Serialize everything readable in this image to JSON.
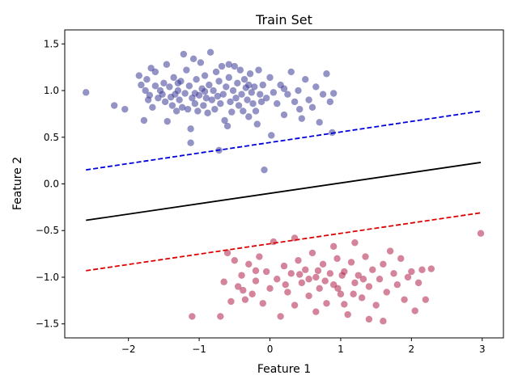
{
  "chart_data": {
    "type": "scatter",
    "title": "Train Set",
    "xlabel": "Feature 1",
    "ylabel": "Feature 2",
    "xlim": [
      -2.9,
      3.3
    ],
    "ylim": [
      -1.65,
      1.65
    ],
    "xticks": [
      -2,
      -1,
      0,
      1,
      2,
      3
    ],
    "yticks": [
      -1.5,
      -1.0,
      -0.5,
      0.0,
      0.5,
      1.0,
      1.5
    ],
    "xtick_labels": [
      "−2",
      "−1",
      "0",
      "1",
      "2",
      "3"
    ],
    "ytick_labels": [
      "−1.5",
      "−1.0",
      "−0.5",
      "0.0",
      "0.5",
      "1.0",
      "1.5"
    ],
    "grid": false,
    "legend": "none",
    "series": [
      {
        "color": "#3b3b98",
        "points": [
          [
            -2.6,
            0.98
          ],
          [
            -2.2,
            0.84
          ],
          [
            -2.05,
            0.8
          ],
          [
            -1.85,
            1.16
          ],
          [
            -1.82,
            1.06
          ],
          [
            -1.78,
            0.68
          ],
          [
            -1.76,
            1.0
          ],
          [
            -1.74,
            1.12
          ],
          [
            -1.72,
            0.9
          ],
          [
            -1.7,
            0.95
          ],
          [
            -1.68,
            1.24
          ],
          [
            -1.66,
            0.82
          ],
          [
            -1.62,
            1.05
          ],
          [
            -1.58,
            0.92
          ],
          [
            -1.55,
            1.0
          ],
          [
            -1.52,
            0.96
          ],
          [
            -1.5,
            1.08
          ],
          [
            -1.48,
            0.88
          ],
          [
            -1.46,
            1.28
          ],
          [
            -1.45,
            0.67
          ],
          [
            -1.42,
            1.04
          ],
          [
            -1.4,
            0.93
          ],
          [
            -1.38,
            0.84
          ],
          [
            -1.36,
            1.14
          ],
          [
            -1.34,
            0.96
          ],
          [
            -1.32,
            0.78
          ],
          [
            -1.3,
            1.0
          ],
          [
            -1.28,
            0.9
          ],
          [
            -1.26,
            1.1
          ],
          [
            -1.24,
            0.82
          ],
          [
            -1.22,
            1.39
          ],
          [
            -1.2,
            0.97
          ],
          [
            -1.18,
            1.22
          ],
          [
            -1.16,
            0.8
          ],
          [
            -1.14,
            1.05
          ],
          [
            -1.12,
            0.59
          ],
          [
            -1.12,
            0.44
          ],
          [
            -1.1,
            0.92
          ],
          [
            -1.08,
            1.34
          ],
          [
            -1.06,
            0.86
          ],
          [
            -1.04,
            1.12
          ],
          [
            -1.02,
            0.78
          ],
          [
            -1.0,
            0.95
          ],
          [
            -0.98,
            1.3
          ],
          [
            -0.96,
            1.02
          ],
          [
            -0.94,
            0.84
          ],
          [
            -0.92,
            1.16
          ],
          [
            -0.9,
            0.92
          ],
          [
            -0.88,
            0.76
          ],
          [
            -0.86,
            1.06
          ],
          [
            -0.84,
            1.41
          ],
          [
            -0.82,
            0.9
          ],
          [
            -0.8,
            1.0
          ],
          [
            -0.78,
            0.8
          ],
          [
            -0.76,
            1.2
          ],
          [
            -0.74,
            0.94
          ],
          [
            -0.72,
            1.1
          ],
          [
            -0.72,
            0.36
          ],
          [
            -0.7,
            0.86
          ],
          [
            -0.68,
            1.26
          ],
          [
            -0.66,
            0.96
          ],
          [
            -0.64,
            0.68
          ],
          [
            -0.62,
            1.04
          ],
          [
            -0.6,
            0.62
          ],
          [
            -0.58,
            1.14
          ],
          [
            -0.56,
            0.88
          ],
          [
            -0.54,
            0.77
          ],
          [
            -0.52,
            1.0
          ],
          [
            -0.5,
            1.26
          ],
          [
            -0.48,
            0.92
          ],
          [
            -0.46,
            1.08
          ],
          [
            -0.44,
            0.84
          ],
          [
            -0.42,
            1.22
          ],
          [
            -0.4,
            0.96
          ],
          [
            -0.38,
            0.78
          ],
          [
            -0.36,
            1.12
          ],
          [
            -0.34,
            1.03
          ],
          [
            -0.32,
            0.9
          ],
          [
            -0.3,
            0.72
          ],
          [
            -0.28,
            1.18
          ],
          [
            -0.26,
            0.98
          ],
          [
            -0.24,
            0.86
          ],
          [
            -0.22,
            1.04
          ],
          [
            -0.2,
            0.78
          ],
          [
            -0.18,
            0.64
          ],
          [
            -0.16,
            1.22
          ],
          [
            -0.14,
            0.96
          ],
          [
            -0.12,
            0.88
          ],
          [
            -0.1,
            1.06
          ],
          [
            -0.08,
            0.15
          ],
          [
            -0.05,
            0.92
          ],
          [
            0.0,
            1.14
          ],
          [
            0.02,
            0.52
          ],
          [
            0.05,
            0.98
          ],
          [
            0.1,
            0.86
          ],
          [
            0.15,
            1.06
          ],
          [
            0.2,
            0.74
          ],
          [
            0.25,
            0.96
          ],
          [
            0.3,
            1.2
          ],
          [
            0.35,
            0.88
          ],
          [
            0.4,
            1.0
          ],
          [
            0.45,
            0.7
          ],
          [
            0.5,
            1.12
          ],
          [
            0.55,
            0.9
          ],
          [
            0.6,
            0.82
          ],
          [
            0.65,
            1.04
          ],
          [
            0.7,
            0.66
          ],
          [
            0.75,
            0.96
          ],
          [
            0.8,
            1.18
          ],
          [
            0.85,
            0.88
          ],
          [
            0.88,
            0.55
          ],
          [
            0.9,
            0.97
          ],
          [
            -1.62,
            1.2
          ],
          [
            -1.3,
            1.08
          ],
          [
            -0.92,
            0.99
          ],
          [
            -0.3,
            1.06
          ],
          [
            0.2,
            1.02
          ],
          [
            0.42,
            0.8
          ],
          [
            -0.58,
            1.28
          ],
          [
            -1.06,
            0.97
          ]
        ]
      },
      {
        "color": "#b0204a",
        "points": [
          [
            -1.1,
            -1.42
          ],
          [
            -0.7,
            -1.42
          ],
          [
            -0.65,
            -1.05
          ],
          [
            -0.6,
            -0.74
          ],
          [
            -0.55,
            -1.26
          ],
          [
            -0.5,
            -0.82
          ],
          [
            -0.45,
            -1.1
          ],
          [
            -0.4,
            -0.98
          ],
          [
            -0.35,
            -1.24
          ],
          [
            -0.3,
            -0.86
          ],
          [
            -0.25,
            -1.18
          ],
          [
            -0.2,
            -1.04
          ],
          [
            -0.15,
            -0.78
          ],
          [
            -0.1,
            -1.28
          ],
          [
            -0.05,
            -0.94
          ],
          [
            0.0,
            -1.12
          ],
          [
            0.05,
            -0.62
          ],
          [
            0.1,
            -1.02
          ],
          [
            0.15,
            -1.42
          ],
          [
            0.2,
            -0.88
          ],
          [
            0.25,
            -1.16
          ],
          [
            0.3,
            -0.96
          ],
          [
            0.35,
            -1.3
          ],
          [
            0.4,
            -0.82
          ],
          [
            0.45,
            -1.06
          ],
          [
            0.5,
            -0.92
          ],
          [
            0.55,
            -1.2
          ],
          [
            0.6,
            -0.74
          ],
          [
            0.65,
            -1.0
          ],
          [
            0.7,
            -1.12
          ],
          [
            0.75,
            -0.86
          ],
          [
            0.8,
            -1.28
          ],
          [
            0.85,
            -0.96
          ],
          [
            0.9,
            -1.08
          ],
          [
            0.95,
            -0.8
          ],
          [
            1.0,
            -1.18
          ],
          [
            1.05,
            -0.94
          ],
          [
            1.1,
            -1.4
          ],
          [
            1.15,
            -0.84
          ],
          [
            1.2,
            -1.06
          ],
          [
            1.25,
            -0.98
          ],
          [
            1.3,
            -1.22
          ],
          [
            1.35,
            -0.78
          ],
          [
            1.4,
            -1.1
          ],
          [
            1.45,
            -0.92
          ],
          [
            1.5,
            -1.3
          ],
          [
            1.55,
            -1.02
          ],
          [
            1.6,
            -0.86
          ],
          [
            1.65,
            -1.16
          ],
          [
            1.7,
            -0.72
          ],
          [
            1.75,
            -0.96
          ],
          [
            1.8,
            -1.08
          ],
          [
            1.85,
            -0.8
          ],
          [
            1.9,
            -1.24
          ],
          [
            1.95,
            -1.0
          ],
          [
            2.0,
            -0.94
          ],
          [
            2.05,
            -1.36
          ],
          [
            2.1,
            -1.06
          ],
          [
            2.15,
            -0.92
          ],
          [
            2.2,
            -1.24
          ],
          [
            2.28,
            -0.91
          ],
          [
            2.98,
            -0.53
          ],
          [
            1.2,
            -0.63
          ],
          [
            1.4,
            -1.45
          ],
          [
            1.6,
            -1.47
          ],
          [
            -0.2,
            -0.93
          ],
          [
            0.35,
            -0.58
          ],
          [
            0.65,
            -1.37
          ],
          [
            0.9,
            -0.67
          ],
          [
            1.05,
            -1.29
          ],
          [
            0.22,
            -1.08
          ],
          [
            0.55,
            -1.02
          ],
          [
            0.78,
            -1.04
          ],
          [
            1.02,
            -0.98
          ],
          [
            1.32,
            -1.02
          ],
          [
            0.42,
            -0.97
          ],
          [
            0.68,
            -0.93
          ],
          [
            0.96,
            -1.12
          ],
          [
            1.18,
            -1.18
          ],
          [
            -0.38,
            -1.14
          ]
        ]
      }
    ],
    "lines": [
      {
        "style": "solid",
        "color": "#000000",
        "x": [
          -2.6,
          2.98
        ],
        "y": [
          -0.39,
          0.23
        ]
      },
      {
        "style": "dashed",
        "color": "#0000dd",
        "x": [
          -2.6,
          2.98
        ],
        "y": [
          0.15,
          0.78
        ]
      },
      {
        "style": "dashed",
        "color": "#dd0000",
        "x": [
          -2.6,
          2.98
        ],
        "y": [
          -0.93,
          -0.31
        ]
      }
    ]
  }
}
